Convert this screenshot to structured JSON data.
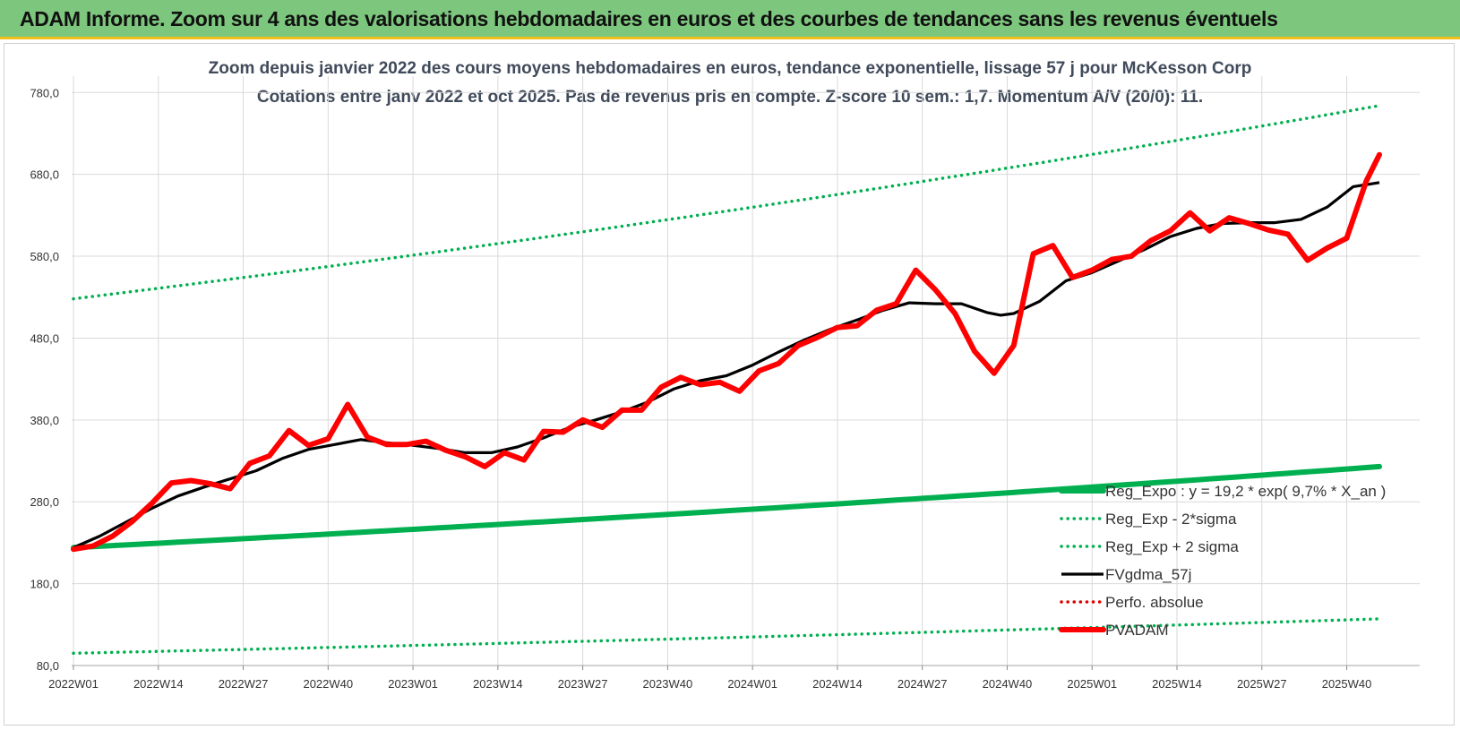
{
  "header": {
    "text": "ADAM Informe. Zoom sur 4 ans des valorisations hebdomadaires en euros et des courbes de tendances sans les revenus éventuels"
  },
  "chart_data": {
    "type": "line",
    "title": "Zoom depuis janvier 2022 des cours moyens hebdomadaires en euros, tendance exponentielle, lissage 57 j pour McKesson Corp",
    "subtitle": "Cotations entre janv 2022 et oct 2025. Pas de revenus pris en compte. Z-score 10 sem.: 1,7. Momentum A/V (20/0): 11.",
    "xlabel": "",
    "ylabel": "",
    "ylim": [
      80,
      800
    ],
    "yticks": [
      "80,0",
      "180,0",
      "280,0",
      "380,0",
      "480,0",
      "580,0",
      "680,0",
      "780,0"
    ],
    "yticks_values": [
      80,
      180,
      280,
      380,
      480,
      580,
      680,
      780
    ],
    "xtick_labels": [
      "2022W01",
      "2022W14",
      "2022W27",
      "2022W40",
      "2023W01",
      "2023W14",
      "2023W27",
      "2023W40",
      "2024W01",
      "2024W14",
      "2024W27",
      "2024W40",
      "2025W01",
      "2025W14",
      "2025W27",
      "2025W40"
    ],
    "xtick_index": [
      0,
      13,
      26,
      39,
      52,
      65,
      78,
      91,
      104,
      117,
      130,
      143,
      156,
      169,
      182,
      195
    ],
    "n_weeks": 200,
    "grid": true,
    "legend_position": "bottom-right",
    "series": [
      {
        "name": "Reg_Expo : y = 19,2 * exp( 9,7% * X_an )",
        "color": "#00b050",
        "style": "solid-thick",
        "start": 224,
        "end": 323
      },
      {
        "name": "Reg_Exp - 2*sigma",
        "color": "#00b050",
        "style": "dotted",
        "start": 95,
        "end": 137
      },
      {
        "name": "Reg_Exp + 2 sigma",
        "color": "#00b050",
        "style": "dotted",
        "start": 528,
        "end": 764
      },
      {
        "name": "FVgdma_57j",
        "color": "#000000",
        "style": "solid",
        "x": [
          0,
          4,
          8,
          12,
          16,
          20,
          24,
          28,
          32,
          36,
          40,
          44,
          48,
          52,
          56,
          60,
          64,
          68,
          72,
          76,
          80,
          84,
          88,
          92,
          96,
          100,
          104,
          108,
          112,
          116,
          120,
          124,
          128,
          132,
          136,
          140,
          142,
          144,
          148,
          152,
          156,
          160,
          164,
          168,
          172,
          176,
          180,
          184,
          188,
          192,
          196,
          200
        ],
        "y": [
          224,
          238,
          255,
          272,
          287,
          298,
          308,
          318,
          333,
          344,
          350,
          356,
          352,
          349,
          345,
          340,
          340,
          347,
          358,
          371,
          380,
          390,
          402,
          418,
          428,
          434,
          447,
          463,
          478,
          491,
          502,
          514,
          523,
          522,
          522,
          511,
          508,
          510,
          525,
          550,
          560,
          574,
          588,
          604,
          614,
          620,
          621,
          621,
          625,
          640,
          665,
          670
        ]
      },
      {
        "name": "Perfo. absolue",
        "color": "#e00000",
        "style": "dotted",
        "x": [
          0,
          3,
          6,
          9,
          12,
          15,
          18,
          21,
          24,
          27,
          30,
          33,
          36,
          39,
          42,
          45,
          48,
          51,
          54,
          57,
          60,
          63,
          66,
          69,
          72,
          75,
          78,
          81,
          84,
          87,
          90,
          93,
          96,
          99,
          102,
          105,
          108,
          111,
          114,
          117,
          120,
          123,
          126,
          129,
          132,
          135,
          138,
          141,
          144,
          147,
          150,
          153,
          156,
          159,
          162,
          165,
          168,
          171,
          174,
          177,
          180,
          183,
          186,
          189,
          192,
          195,
          198,
          200
        ],
        "y": [
          222,
          226,
          238,
          256,
          278,
          303,
          306,
          302,
          296,
          327,
          336,
          367,
          349,
          357,
          399,
          359,
          350,
          350,
          354,
          343,
          335,
          323,
          340,
          331,
          366,
          365,
          380,
          371,
          392,
          392,
          420,
          432,
          423,
          426,
          415,
          440,
          449,
          471,
          481,
          493,
          495,
          514,
          522,
          563,
          539,
          510,
          464,
          437,
          471,
          583,
          593,
          554,
          563,
          576,
          580,
          599,
          611,
          633,
          611,
          627,
          620,
          612,
          607,
          575,
          590,
          602,
          672,
          704
        ]
      },
      {
        "name": "PVADAM",
        "color": "#ff0000",
        "style": "solid-thick",
        "x": [
          0,
          3,
          6,
          9,
          12,
          15,
          18,
          21,
          24,
          27,
          30,
          33,
          36,
          39,
          42,
          45,
          48,
          51,
          54,
          57,
          60,
          63,
          66,
          69,
          72,
          75,
          78,
          81,
          84,
          87,
          90,
          93,
          96,
          99,
          102,
          105,
          108,
          111,
          114,
          117,
          120,
          123,
          126,
          129,
          132,
          135,
          138,
          141,
          144,
          147,
          150,
          153,
          156,
          159,
          162,
          165,
          168,
          171,
          174,
          177,
          180,
          183,
          186,
          189,
          192,
          195,
          198,
          200
        ],
        "y": [
          222,
          226,
          238,
          256,
          278,
          303,
          306,
          302,
          296,
          327,
          336,
          367,
          349,
          357,
          399,
          359,
          350,
          350,
          354,
          343,
          335,
          323,
          340,
          331,
          366,
          365,
          380,
          371,
          392,
          392,
          420,
          432,
          423,
          426,
          415,
          440,
          449,
          471,
          481,
          493,
          495,
          514,
          522,
          563,
          539,
          510,
          464,
          437,
          471,
          583,
          593,
          554,
          563,
          576,
          580,
          599,
          611,
          633,
          611,
          627,
          620,
          612,
          607,
          575,
          590,
          602,
          672,
          704
        ]
      }
    ]
  }
}
